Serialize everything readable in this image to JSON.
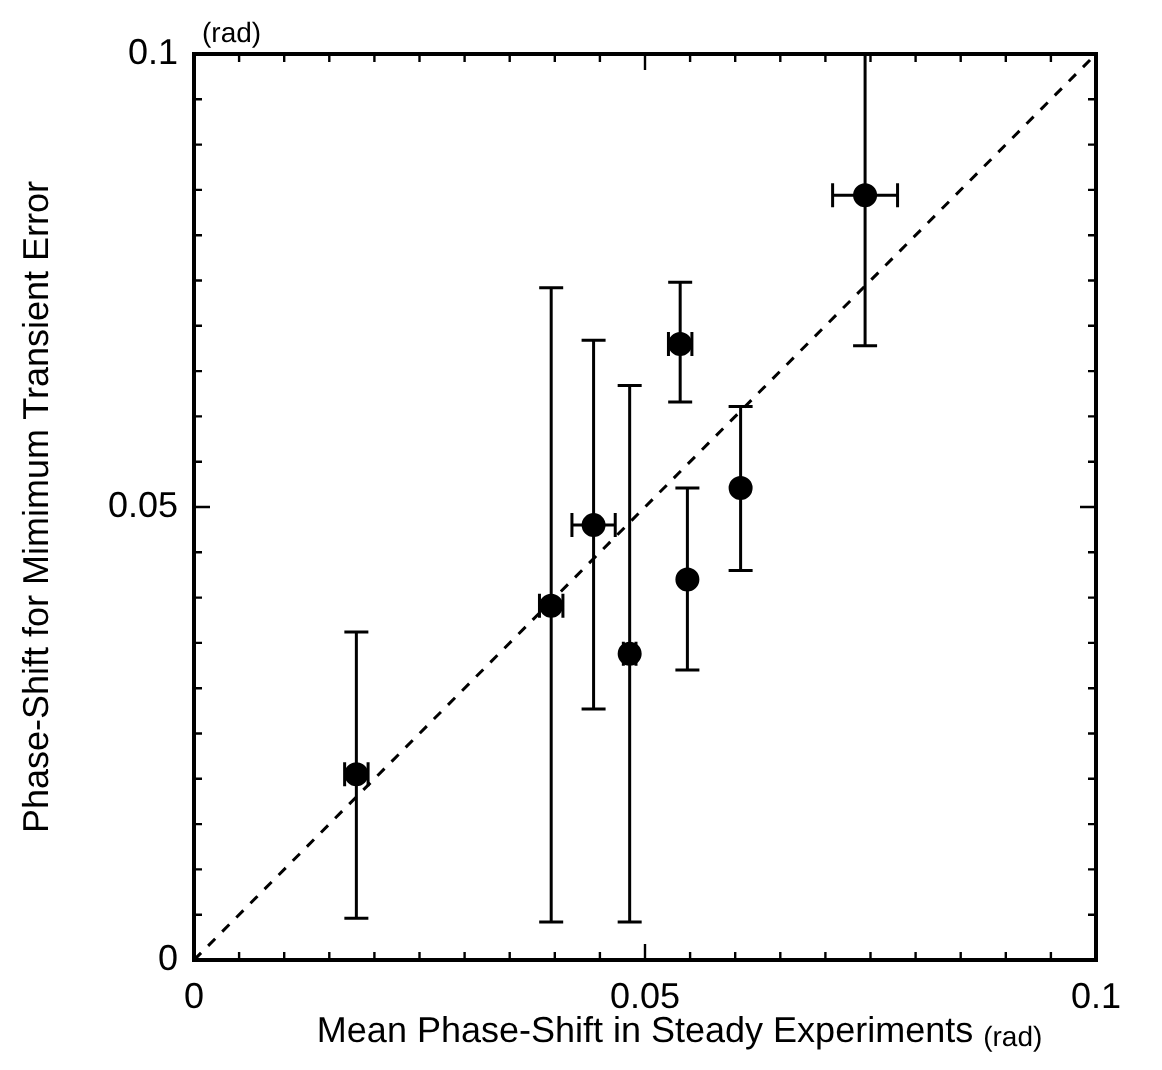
{
  "chart_data": {
    "type": "scatter",
    "xlabel": "Mean Phase-Shift in Steady Experiments",
    "ylabel": "Phase-Shift for Mimimum Transient Error",
    "annotations": [
      "(rad)",
      "(rad)"
    ],
    "xlim": [
      0,
      0.1
    ],
    "ylim": [
      0,
      0.1
    ],
    "xticks": [
      0,
      {
        "value": 0.005,
        "label": null
      },
      {
        "value": 0.01,
        "label": null
      },
      {
        "value": 0.015,
        "label": null
      },
      {
        "value": 0.02,
        "label": null
      },
      {
        "value": 0.025,
        "label": null
      },
      {
        "value": 0.03,
        "label": null
      },
      {
        "value": 0.035,
        "label": null
      },
      {
        "value": 0.04,
        "label": null
      },
      {
        "value": 0.045,
        "label": null
      },
      0.05,
      {
        "value": 0.055,
        "label": null
      },
      {
        "value": 0.06,
        "label": null
      },
      {
        "value": 0.065,
        "label": null
      },
      {
        "value": 0.07,
        "label": null
      },
      {
        "value": 0.075,
        "label": null
      },
      {
        "value": 0.08,
        "label": null
      },
      {
        "value": 0.085,
        "label": null
      },
      {
        "value": 0.09,
        "label": null
      },
      {
        "value": 0.095,
        "label": null
      },
      0.1
    ],
    "yticks": [
      0,
      {
        "value": 0.005,
        "label": null
      },
      {
        "value": 0.01,
        "label": null
      },
      {
        "value": 0.015,
        "label": null
      },
      {
        "value": 0.02,
        "label": null
      },
      {
        "value": 0.025,
        "label": null
      },
      {
        "value": 0.03,
        "label": null
      },
      {
        "value": 0.035,
        "label": null
      },
      {
        "value": 0.04,
        "label": null
      },
      {
        "value": 0.045,
        "label": null
      },
      0.05,
      {
        "value": 0.055,
        "label": null
      },
      {
        "value": 0.06,
        "label": null
      },
      {
        "value": 0.065,
        "label": null
      },
      {
        "value": 0.07,
        "label": null
      },
      {
        "value": 0.075,
        "label": null
      },
      {
        "value": 0.08,
        "label": null
      },
      {
        "value": 0.085,
        "label": null
      },
      {
        "value": 0.09,
        "label": null
      },
      {
        "value": 0.095,
        "label": null
      },
      0.1
    ],
    "grid": false,
    "legend": false,
    "marker": "circle",
    "series": [
      {
        "color": "#000000",
        "x": [
          0.018,
          0.0396,
          0.0443,
          0.0483,
          0.0539,
          0.0547,
          0.0606,
          0.0744
        ],
        "values": [
          0.0205,
          0.0391,
          0.048,
          0.0338,
          0.068,
          0.042,
          0.0521,
          0.0844
        ],
        "errors": [
          [
            0.0046,
            0.0362
          ],
          [
            0.0042,
            0.0742
          ],
          [
            0.0277,
            0.0684
          ],
          [
            0.0042,
            0.0634
          ],
          [
            0.0616,
            0.0748
          ],
          [
            0.032,
            0.0521
          ],
          [
            0.043,
            0.0611
          ],
          [
            0.0678,
            0.1
          ]
        ],
        "xerrors": [
          0.0013,
          0.0013,
          0.0024,
          0.0007,
          0.0013,
          null,
          null,
          0.0036
        ]
      },
      {
        "type": "line",
        "color": "#000000",
        "line_style": "dashed",
        "marker": "none",
        "x": [
          0,
          0.1
        ],
        "values": [
          0,
          0.1
        ]
      }
    ]
  }
}
